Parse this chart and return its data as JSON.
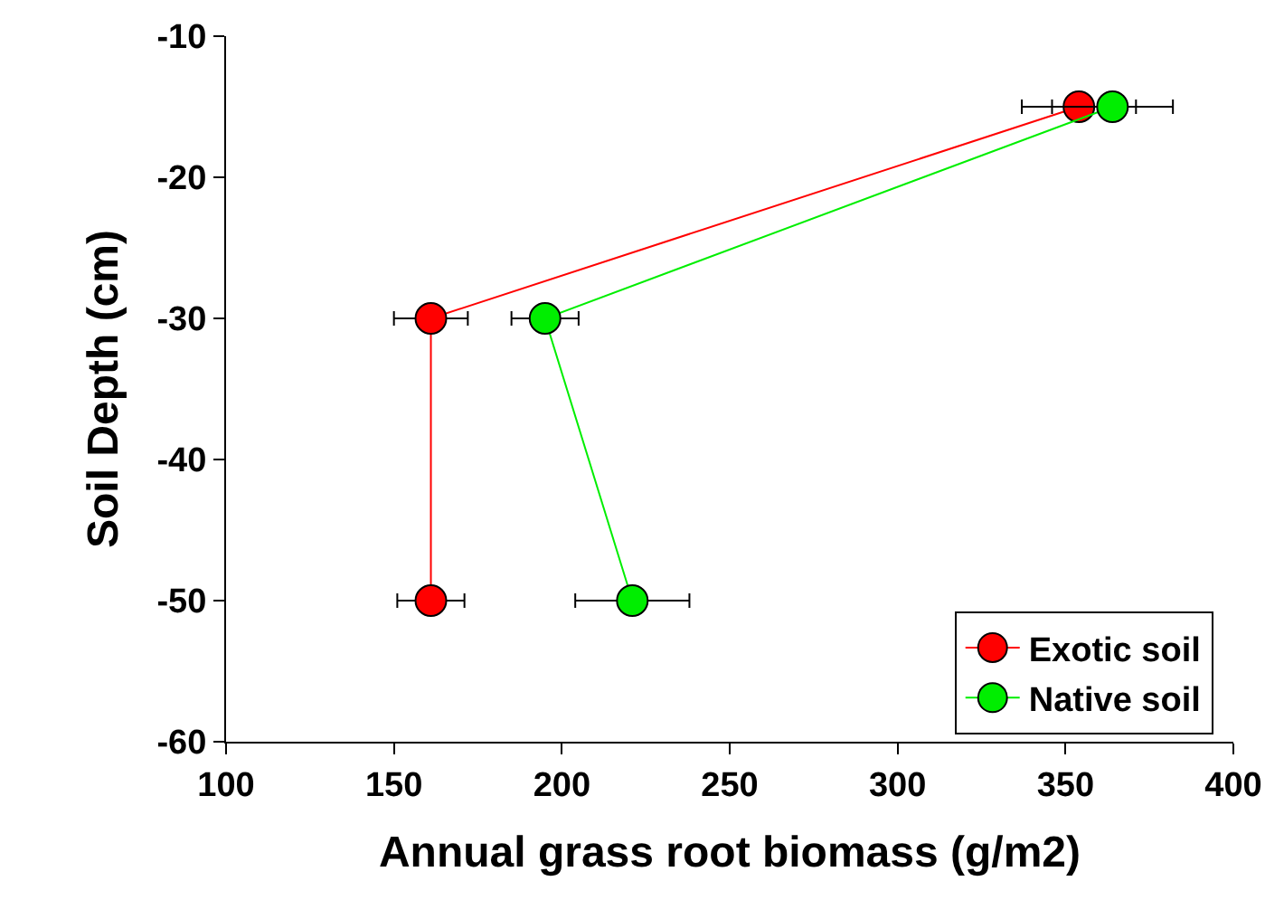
{
  "chart_data": {
    "type": "line",
    "xlabel": "Annual grass root biomass (g/m2)",
    "ylabel": "Soil Depth (cm)",
    "xlim": [
      100,
      400
    ],
    "xticks": [
      100,
      150,
      200,
      250,
      300,
      350,
      400
    ],
    "ylim": [
      -60,
      -10
    ],
    "yticks": [
      -60,
      -50,
      -40,
      -30,
      -20,
      -10
    ],
    "grid": false,
    "legend": "bottom right",
    "marker": "circle",
    "line_style": "solid",
    "series": [
      {
        "name": "Exotic soil",
        "color": "#ff0000",
        "x": [
          354,
          161,
          161
        ],
        "values": [
          -15,
          -30,
          -50
        ],
        "xerrors": [
          17,
          11,
          10
        ]
      },
      {
        "name": "Native soil",
        "color": "#00ee00",
        "x": [
          364,
          195,
          221
        ],
        "values": [
          -15,
          -30,
          -50
        ],
        "xerrors": [
          18,
          10,
          17
        ]
      }
    ]
  }
}
